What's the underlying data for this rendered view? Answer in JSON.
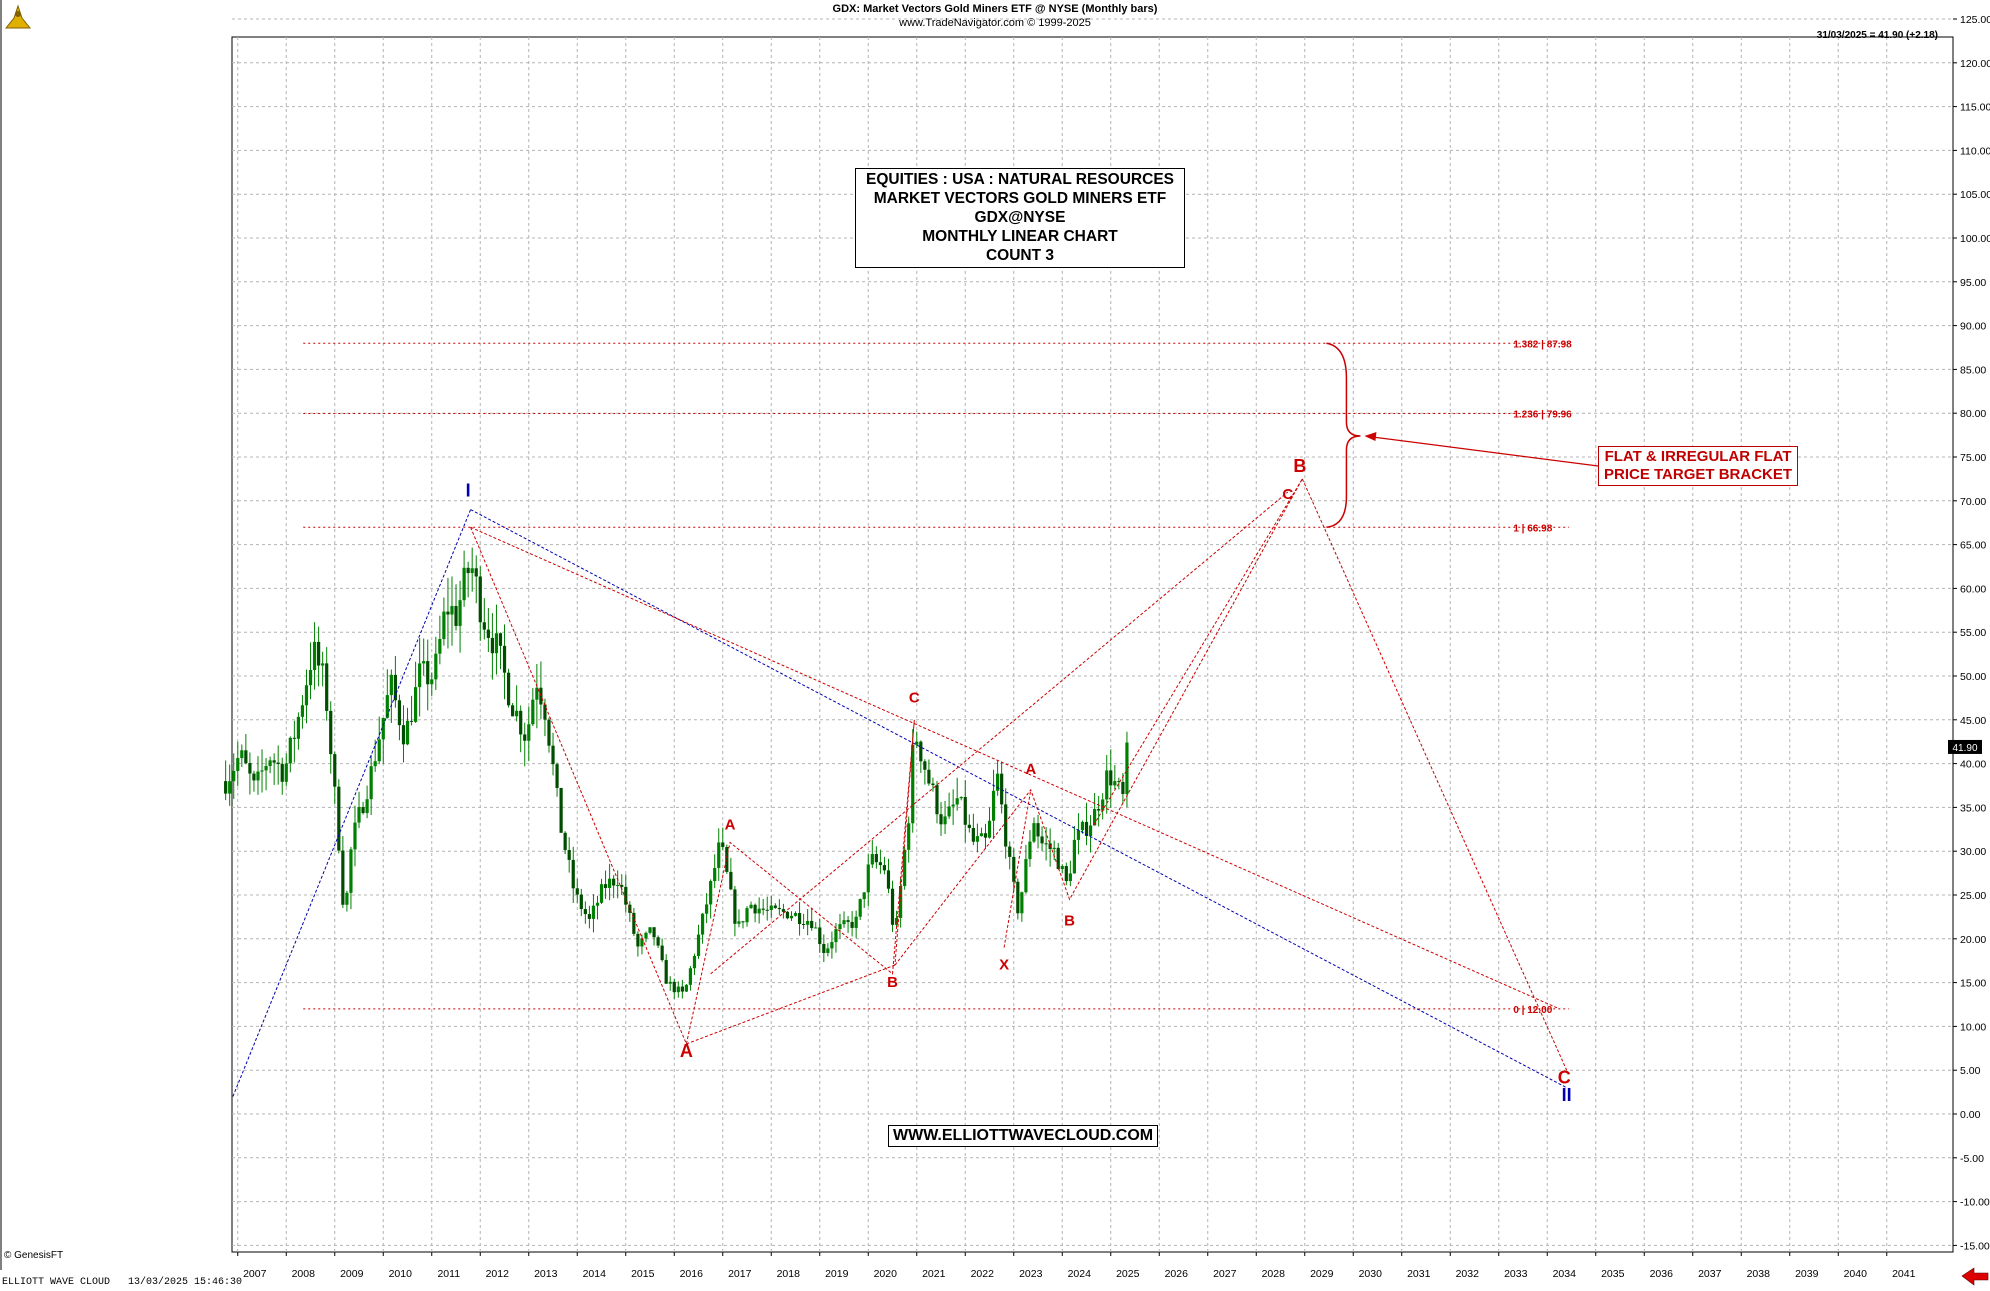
{
  "header": {
    "title": "GDX:  Market Vectors Gold Miners ETF @ NYSE  (Monthly bars)",
    "subtitle": "www.TradeNavigator.com © 1999-2025"
  },
  "info_box": [
    "EQUITIES : USA : NATURAL RESOURCES",
    "MARKET VECTORS GOLD MINERS ETF",
    "GDX@NYSE",
    "MONTHLY LINEAR CHART",
    "COUNT 3"
  ],
  "website": "WWW.ELLIOTTWAVECLOUD.COM",
  "target_box": [
    "FLAT & IRREGULAR FLAT",
    "PRICE TARGET BRACKET"
  ],
  "last_price_label": "31/03/2025 = 41.90 (+2.18)",
  "copyright": "© GenesisFT",
  "footer": "ELLIOTT WAVE CLOUD   13/03/2025 15:46:30",
  "colors": {
    "red": "#cc0000",
    "blue": "#0000b0",
    "candle": "#008000",
    "grid": "#b4b4b4"
  },
  "chart_data": {
    "type": "candlestick",
    "x_axis": {
      "min": 2006.45,
      "max": 2041.8,
      "ticks": [
        2007,
        2008,
        2009,
        2010,
        2011,
        2012,
        2013,
        2014,
        2015,
        2016,
        2017,
        2018,
        2019,
        2020,
        2021,
        2022,
        2023,
        2024,
        2025,
        2026,
        2027,
        2028,
        2029,
        2030,
        2031,
        2032,
        2033,
        2034,
        2035,
        2036,
        2037,
        2038,
        2039,
        2040,
        2041
      ]
    },
    "y_axis": {
      "min": -17.5,
      "max": 127,
      "ticks": [
        -15,
        -10,
        -5,
        0,
        5,
        10,
        15,
        20,
        25,
        30,
        35,
        40,
        45,
        50,
        55,
        60,
        65,
        70,
        75,
        80,
        85,
        90,
        95,
        100,
        105,
        110,
        115,
        120,
        125
      ],
      "grid": true
    },
    "price_path": [
      [
        2006.4,
        38
      ],
      [
        2006.7,
        41
      ],
      [
        2007.0,
        37
      ],
      [
        2007.3,
        41
      ],
      [
        2007.6,
        39
      ],
      [
        2007.85,
        44
      ],
      [
        2008.2,
        53
      ],
      [
        2008.45,
        49
      ],
      [
        2008.75,
        30
      ],
      [
        2008.85,
        22
      ],
      [
        2009.0,
        31
      ],
      [
        2009.4,
        39
      ],
      [
        2009.8,
        49
      ],
      [
        2010.1,
        43
      ],
      [
        2010.4,
        50
      ],
      [
        2010.7,
        50
      ],
      [
        2010.95,
        58
      ],
      [
        2011.15,
        57
      ],
      [
        2011.45,
        63
      ],
      [
        2011.7,
        57
      ],
      [
        2012.0,
        53
      ],
      [
        2012.3,
        47
      ],
      [
        2012.6,
        43
      ],
      [
        2012.8,
        50
      ],
      [
        2013.0,
        46
      ],
      [
        2013.3,
        33
      ],
      [
        2013.6,
        25
      ],
      [
        2013.9,
        22
      ],
      [
        2014.2,
        26
      ],
      [
        2014.5,
        27
      ],
      [
        2014.9,
        19
      ],
      [
        2015.2,
        21
      ],
      [
        2015.5,
        15
      ],
      [
        2015.85,
        13.5
      ],
      [
        2016.05,
        18
      ],
      [
        2016.4,
        26
      ],
      [
        2016.6,
        31
      ],
      [
        2016.95,
        21
      ],
      [
        2017.2,
        24
      ],
      [
        2017.6,
        23
      ],
      [
        2018.0,
        23
      ],
      [
        2018.5,
        22
      ],
      [
        2018.75,
        18.5
      ],
      [
        2019.0,
        21
      ],
      [
        2019.4,
        22
      ],
      [
        2019.7,
        29
      ],
      [
        2020.0,
        28
      ],
      [
        2020.2,
        20
      ],
      [
        2020.5,
        35
      ],
      [
        2020.6,
        44
      ],
      [
        2020.9,
        38
      ],
      [
        2021.2,
        33
      ],
      [
        2021.5,
        36
      ],
      [
        2021.8,
        31
      ],
      [
        2022.1,
        31
      ],
      [
        2022.3,
        39
      ],
      [
        2022.6,
        27
      ],
      [
        2022.75,
        23
      ],
      [
        2023.05,
        34
      ],
      [
        2023.2,
        31
      ],
      [
        2023.5,
        30
      ],
      [
        2023.75,
        26
      ],
      [
        2023.9,
        31
      ],
      [
        2024.3,
        34
      ],
      [
        2024.6,
        39
      ],
      [
        2024.9,
        36
      ],
      [
        2025.0,
        41.9
      ]
    ],
    "fib_levels": [
      {
        "label": "0 | 12.00",
        "value": 12.0
      },
      {
        "label": "1 | 66.98",
        "value": 66.98
      },
      {
        "label": "1.236 | 79.96",
        "value": 79.96
      },
      {
        "label": "1.382 | 87.98",
        "value": 87.98
      }
    ],
    "last_price": 41.9,
    "wave_labels": [
      {
        "text": "I",
        "x": 2011.4,
        "y": 70.5,
        "color": "blue",
        "size": "large"
      },
      {
        "text": "II",
        "x": 2034.05,
        "y": 1.5,
        "color": "blue",
        "size": "large"
      },
      {
        "text": "A",
        "x": 2015.9,
        "y": 6.5,
        "color": "red",
        "size": "large"
      },
      {
        "text": "A",
        "x": 2016.8,
        "y": 32.5,
        "color": "red",
        "size": "medium"
      },
      {
        "text": "B",
        "x": 2020.15,
        "y": 14.5,
        "color": "red",
        "size": "medium"
      },
      {
        "text": "C",
        "x": 2020.6,
        "y": 47,
        "color": "red",
        "size": "medium"
      },
      {
        "text": "A",
        "x": 2023.0,
        "y": 38.8,
        "color": "red",
        "size": "medium"
      },
      {
        "text": "X",
        "x": 2022.45,
        "y": 16.5,
        "color": "red",
        "size": "medium"
      },
      {
        "text": "B",
        "x": 2023.8,
        "y": 21.5,
        "color": "red",
        "size": "medium"
      },
      {
        "text": "B",
        "x": 2028.55,
        "y": 73.3,
        "color": "red",
        "size": "large"
      },
      {
        "text": "C",
        "x": 2028.3,
        "y": 70.2,
        "color": "red",
        "size": "medium"
      },
      {
        "text": "C",
        "x": 2034.0,
        "y": 3.5,
        "color": "red",
        "size": "large"
      }
    ]
  }
}
